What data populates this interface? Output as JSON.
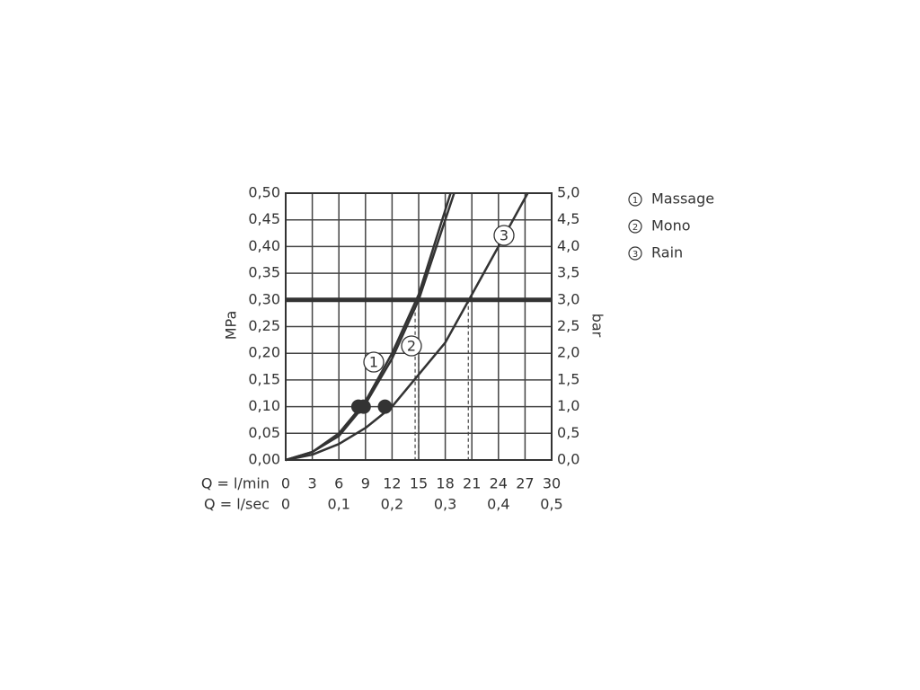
{
  "chart_data": {
    "type": "line",
    "ylabel": "MPa",
    "y2label": "bar",
    "xlabel": "Q = l/min",
    "x2label": "Q = l/sec",
    "xlim": [
      0,
      30
    ],
    "xticks": [
      0,
      3,
      6,
      9,
      12,
      15,
      18,
      21,
      24,
      27,
      30
    ],
    "x2lim": [
      0,
      0.5
    ],
    "x2ticks": [
      0,
      {
        "value": 0.1,
        "label": "0,1"
      },
      {
        "value": 0.2,
        "label": "0,2"
      },
      {
        "value": 0.3,
        "label": "0,3"
      },
      {
        "value": 0.4,
        "label": "0,4"
      },
      {
        "value": 0.5,
        "label": "0,5"
      }
    ],
    "ylim": [
      0,
      0.5
    ],
    "yticks": [
      {
        "value": 0,
        "label": "0,00"
      },
      {
        "value": 0.05,
        "label": "0,05"
      },
      {
        "value": 0.1,
        "label": "0,10"
      },
      {
        "value": 0.15,
        "label": "0,15"
      },
      {
        "value": 0.2,
        "label": "0,20"
      },
      {
        "value": 0.25,
        "label": "0,25"
      },
      {
        "value": 0.3,
        "label": "0,30"
      },
      {
        "value": 0.35,
        "label": "0,35"
      },
      {
        "value": 0.4,
        "label": "0,40"
      },
      {
        "value": 0.45,
        "label": "0,45"
      },
      {
        "value": 0.5,
        "label": "0,50"
      }
    ],
    "y2lim": [
      0,
      5
    ],
    "y2ticks": [
      {
        "value": 0,
        "label": "0,0"
      },
      {
        "value": 0.5,
        "label": "0,5"
      },
      {
        "value": 1,
        "label": "1,0"
      },
      {
        "value": 1.5,
        "label": "1,5"
      },
      {
        "value": 2,
        "label": "2,0"
      },
      {
        "value": 2.5,
        "label": "2,5"
      },
      {
        "value": 3,
        "label": "3,0"
      },
      {
        "value": 3.5,
        "label": "3,5"
      },
      {
        "value": 4,
        "label": "4,0"
      },
      {
        "value": 4.5,
        "label": "4,5"
      },
      {
        "value": 5,
        "label": "5,0"
      }
    ],
    "grid": true,
    "color": "#333333",
    "reference_line": 0.3,
    "series": [
      {
        "name": "Massage",
        "marker_label": "1",
        "x": [
          0,
          3,
          6,
          9,
          12,
          15,
          18.6
        ],
        "values": [
          0,
          0.015,
          0.05,
          0.11,
          0.2,
          0.31,
          0.5
        ],
        "point": {
          "x": 8.2,
          "y": 0.1
        },
        "rated_point": {
          "x": 14.6,
          "y": 0.3
        }
      },
      {
        "name": "Mono",
        "marker_label": "2",
        "x": [
          0,
          3,
          6,
          9,
          12,
          15,
          19
        ],
        "values": [
          0,
          0.015,
          0.045,
          0.105,
          0.19,
          0.3,
          0.5
        ],
        "point": {
          "x": 8.8,
          "y": 0.1
        },
        "rated_point": {
          "x": 15,
          "y": 0.3
        }
      },
      {
        "name": "Rain",
        "marker_label": "3",
        "x": [
          0,
          3,
          6,
          9,
          12,
          15,
          18,
          21,
          24,
          27.3
        ],
        "values": [
          0,
          0.01,
          0.03,
          0.06,
          0.1,
          0.16,
          0.22,
          0.31,
          0.4,
          0.5
        ],
        "point": {
          "x": 11.2,
          "y": 0.1
        },
        "rated_point": {
          "x": 20.6,
          "y": 0.3
        }
      }
    ]
  }
}
